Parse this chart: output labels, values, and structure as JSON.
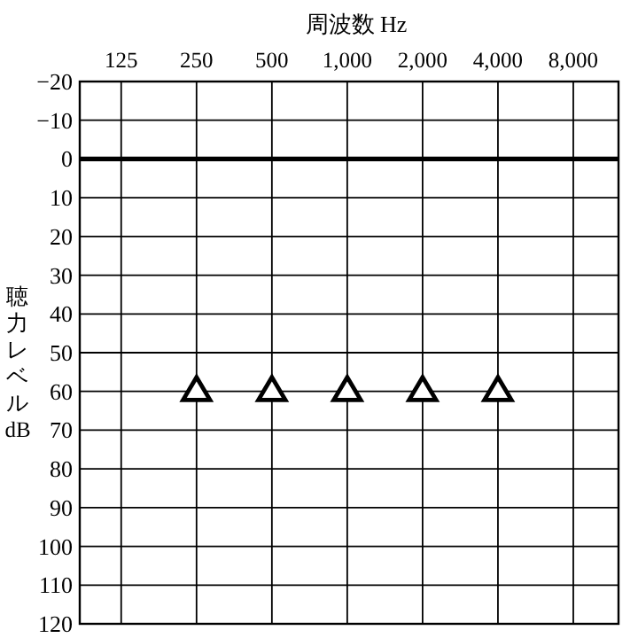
{
  "chart_data": {
    "type": "scatter",
    "xlabel": "周波数 Hz",
    "ylabel": "聴力レベル dB",
    "categories": [
      "125",
      "250",
      "500",
      "1,000",
      "2,000",
      "4,000",
      "8,000"
    ],
    "series": [
      {
        "color": "#000000",
        "values": [
          null,
          60,
          60,
          60,
          60,
          60,
          null
        ]
      }
    ],
    "marker": "triangle",
    "ylim": [
      120,
      -20
    ],
    "yticks": [
      {
        "value": -20,
        "label": "−20"
      },
      {
        "value": -10,
        "label": "−10"
      },
      0,
      10,
      20,
      30,
      40,
      50,
      60,
      70,
      80,
      90,
      100,
      110,
      120
    ],
    "grid": true,
    "ref_lines": [
      {
        "axis": "y",
        "value": 0,
        "color": "#000000"
      }
    ]
  }
}
